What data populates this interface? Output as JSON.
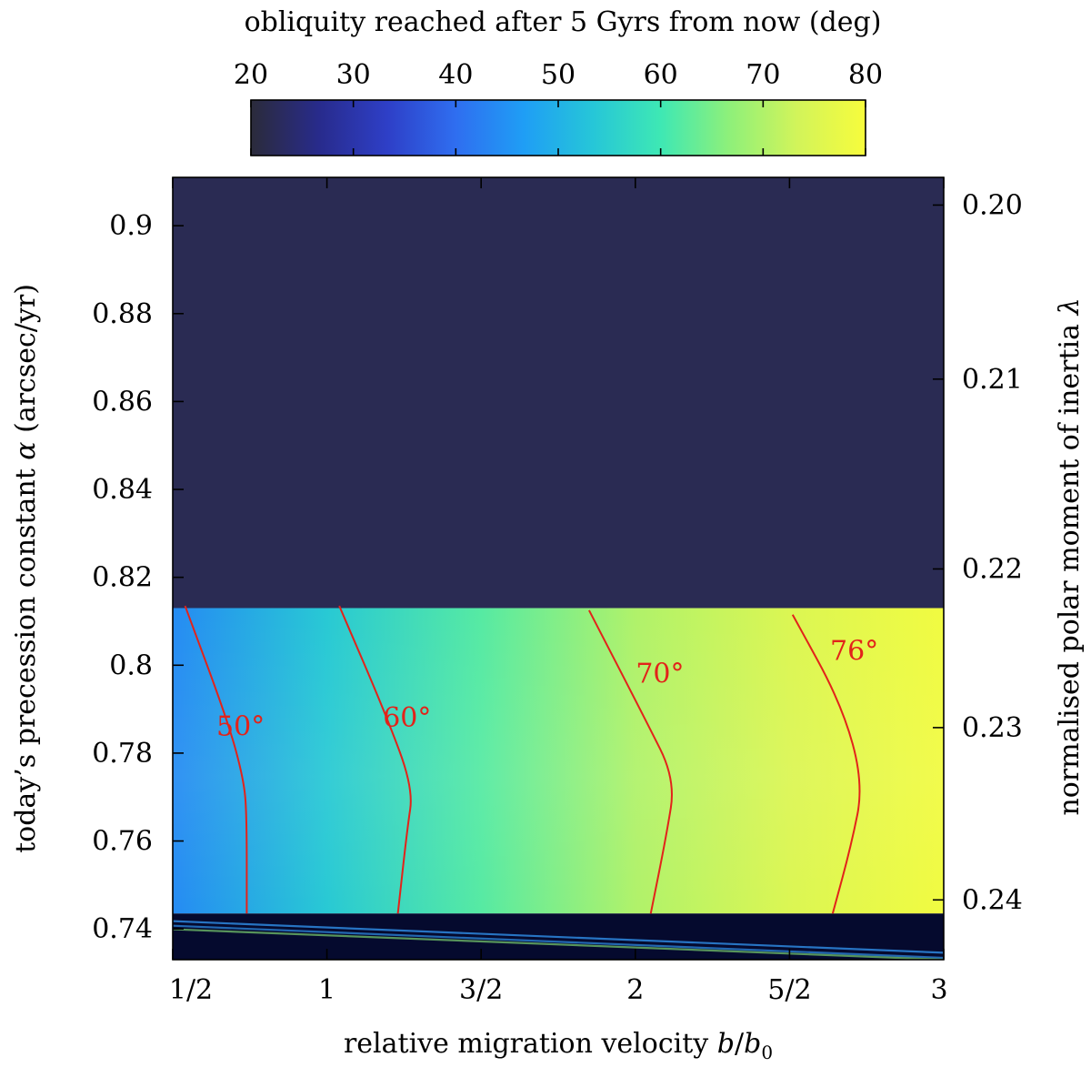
{
  "chart_data": {
    "type": "heatmap",
    "colorbar": {
      "title": "obliquity reached after 5 Gyrs from now (deg)",
      "range": [
        20,
        80
      ],
      "ticks": [
        "20",
        "30",
        "40",
        "50",
        "60",
        "70",
        "80"
      ],
      "colormap": [
        "#2b2b3a",
        "#282b8c",
        "#2e3fc7",
        "#2f6ef0",
        "#1f9ef5",
        "#26c6d8",
        "#3ee8b4",
        "#8ef07a",
        "#d2f45a",
        "#f7fc3c"
      ]
    },
    "xaxis": {
      "label": "relative migration velocity b/b0",
      "range": [
        0.5,
        3.0
      ],
      "ticks": [
        {
          "value": 0.5,
          "label": "1/2"
        },
        {
          "value": 1.0,
          "label": "1"
        },
        {
          "value": 1.5,
          "label": "3/2"
        },
        {
          "value": 2.0,
          "label": "2"
        },
        {
          "value": 2.5,
          "label": "5/2"
        },
        {
          "value": 3.0,
          "label": "3"
        }
      ]
    },
    "yaxis": {
      "label": "today's precession constant α (arcsec/yr)",
      "range": [
        0.733,
        0.911
      ],
      "ticks": [
        {
          "value": 0.74,
          "label": "0.74"
        },
        {
          "value": 0.76,
          "label": "0.76"
        },
        {
          "value": 0.78,
          "label": "0.78"
        },
        {
          "value": 0.8,
          "label": "0.8"
        },
        {
          "value": 0.82,
          "label": "0.82"
        },
        {
          "value": 0.84,
          "label": "0.84"
        },
        {
          "value": 0.86,
          "label": "0.86"
        },
        {
          "value": 0.88,
          "label": "0.88"
        },
        {
          "value": 0.9,
          "label": "0.9"
        }
      ]
    },
    "y2axis": {
      "label": "normalised polar moment of inertia λ",
      "ticks": [
        {
          "alpha": 0.9047,
          "label": "0.20"
        },
        {
          "alpha": 0.8651,
          "label": "0.21"
        },
        {
          "alpha": 0.8219,
          "label": "0.22"
        },
        {
          "alpha": 0.7858,
          "label": "0.23"
        },
        {
          "alpha": 0.7466,
          "label": "0.24"
        }
      ]
    },
    "regions": [
      {
        "name": "upper",
        "alpha_min": 0.8125,
        "alpha_max": 0.911,
        "obliquity": 22
      },
      {
        "name": "resonance",
        "alpha_min": 0.7435,
        "alpha_max": 0.813,
        "obliquity_at_b": [
          [
            0.5,
            44
          ],
          [
            1.0,
            54
          ],
          [
            1.5,
            62
          ],
          [
            2.0,
            70
          ],
          [
            2.5,
            75
          ],
          [
            3.0,
            79
          ]
        ]
      },
      {
        "name": "lower",
        "alpha_min": 0.733,
        "alpha_max": 0.7435,
        "obliquity": 20
      }
    ],
    "contours": [
      {
        "label": "50°",
        "level": 50,
        "points": [
          [
            0.54,
            0.8135
          ],
          [
            0.68,
            0.787
          ],
          [
            0.73,
            0.774
          ],
          [
            0.74,
            0.766
          ],
          [
            0.74,
            0.7435
          ]
        ]
      },
      {
        "label": "60°",
        "level": 60,
        "points": [
          [
            1.04,
            0.8135
          ],
          [
            1.19,
            0.789
          ],
          [
            1.28,
            0.772
          ],
          [
            1.26,
            0.7625
          ],
          [
            1.23,
            0.7435
          ]
        ]
      },
      {
        "label": "70°",
        "level": 70,
        "points": [
          [
            1.85,
            0.8125
          ],
          [
            2.03,
            0.788
          ],
          [
            2.13,
            0.774
          ],
          [
            2.1,
            0.761
          ],
          [
            2.05,
            0.7435
          ]
        ]
      },
      {
        "label": "76°",
        "level": 76,
        "points": [
          [
            2.51,
            0.8115
          ],
          [
            2.67,
            0.791
          ],
          [
            2.74,
            0.773
          ],
          [
            2.7,
            0.759
          ],
          [
            2.64,
            0.7435
          ]
        ]
      }
    ]
  }
}
